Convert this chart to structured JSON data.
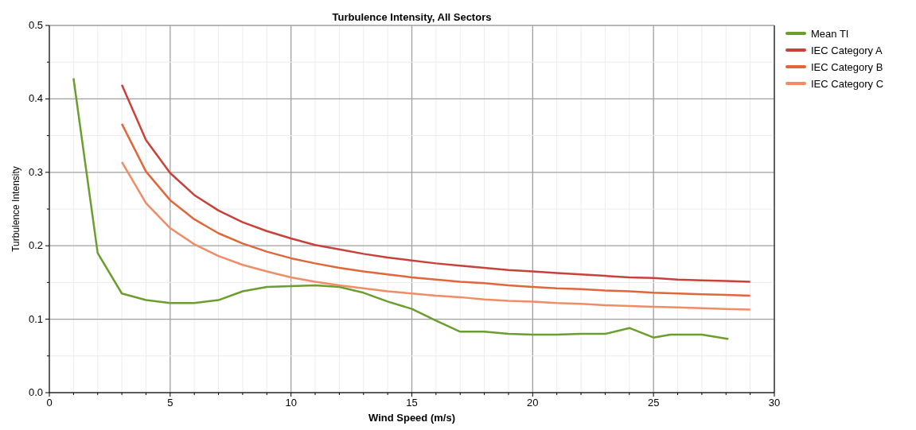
{
  "chart_data": {
    "type": "line",
    "title": "Turbulence Intensity, All Sectors",
    "xlabel": "Wind Speed (m/s)",
    "ylabel": "Turbulence Intensity",
    "xlim": [
      0,
      30
    ],
    "ylim": [
      0,
      0.5
    ],
    "xticks": [
      0,
      {
        "value": 1,
        "label": null
      },
      {
        "value": 2,
        "label": null
      },
      {
        "value": 3,
        "label": null
      },
      {
        "value": 4,
        "label": null
      },
      5,
      {
        "value": 6,
        "label": null
      },
      {
        "value": 7,
        "label": null
      },
      {
        "value": 8,
        "label": null
      },
      {
        "value": 9,
        "label": null
      },
      10,
      {
        "value": 11,
        "label": null
      },
      {
        "value": 12,
        "label": null
      },
      {
        "value": 13,
        "label": null
      },
      {
        "value": 14,
        "label": null
      },
      15,
      {
        "value": 16,
        "label": null
      },
      {
        "value": 17,
        "label": null
      },
      {
        "value": 18,
        "label": null
      },
      {
        "value": 19,
        "label": null
      },
      20,
      {
        "value": 21,
        "label": null
      },
      {
        "value": 22,
        "label": null
      },
      {
        "value": 23,
        "label": null
      },
      {
        "value": 24,
        "label": null
      },
      25,
      {
        "value": 26,
        "label": null
      },
      {
        "value": 27,
        "label": null
      },
      {
        "value": 28,
        "label": null
      },
      {
        "value": 29,
        "label": null
      },
      30
    ],
    "yticks": [
      {
        "value": 0,
        "label": "0.0"
      },
      {
        "value": 0.05,
        "label": null
      },
      0.1,
      {
        "value": 0.15,
        "label": null
      },
      0.2,
      {
        "value": 0.25,
        "label": null
      },
      0.3,
      {
        "value": 0.35,
        "label": null
      },
      0.4,
      {
        "value": 0.45,
        "label": null
      },
      0.5
    ],
    "grid": true,
    "legend": "top right",
    "marker": "none",
    "line_style": "solid",
    "series": [
      {
        "name": "Mean TI",
        "color": "#6b9e2e",
        "x": [
          1,
          2,
          3,
          4,
          5,
          6,
          7,
          8,
          9,
          10,
          11,
          12,
          13,
          14,
          15,
          16,
          17,
          18,
          19,
          20,
          21,
          22,
          23,
          24,
          25,
          25.7,
          26,
          27,
          28.1
        ],
        "values": [
          0.428,
          0.19,
          0.135,
          0.126,
          0.122,
          0.122,
          0.126,
          0.138,
          0.144,
          0.145,
          0.146,
          0.144,
          0.136,
          0.124,
          0.114,
          0.098,
          0.083,
          0.083,
          0.08,
          0.079,
          0.079,
          0.08,
          0.08,
          0.088,
          0.075,
          0.079,
          0.079,
          0.079,
          0.073
        ]
      },
      {
        "name": "IEC Category A",
        "color": "#c9413b",
        "x": [
          3,
          4,
          5,
          6,
          7,
          8,
          9,
          10,
          11,
          12,
          13,
          14,
          15,
          16,
          17,
          18,
          19,
          20,
          21,
          22,
          23,
          24,
          25,
          26,
          27,
          28,
          29
        ],
        "values": [
          0.419,
          0.344,
          0.299,
          0.269,
          0.248,
          0.232,
          0.22,
          0.21,
          0.201,
          0.195,
          0.189,
          0.184,
          0.18,
          0.176,
          0.173,
          0.17,
          0.167,
          0.165,
          0.163,
          0.161,
          0.159,
          0.157,
          0.156,
          0.154,
          0.153,
          0.152,
          0.151
        ]
      },
      {
        "name": "IEC Category B",
        "color": "#e0673a",
        "x": [
          3,
          4,
          5,
          6,
          7,
          8,
          9,
          10,
          11,
          12,
          13,
          14,
          15,
          16,
          17,
          18,
          19,
          20,
          21,
          22,
          23,
          24,
          25,
          26,
          27,
          28,
          29
        ],
        "values": [
          0.366,
          0.301,
          0.262,
          0.236,
          0.217,
          0.203,
          0.192,
          0.183,
          0.176,
          0.17,
          0.165,
          0.161,
          0.157,
          0.154,
          0.151,
          0.149,
          0.146,
          0.144,
          0.142,
          0.141,
          0.139,
          0.138,
          0.136,
          0.135,
          0.134,
          0.133,
          0.132
        ]
      },
      {
        "name": "IEC Category C",
        "color": "#f08c66",
        "x": [
          3,
          4,
          5,
          6,
          7,
          8,
          9,
          10,
          11,
          12,
          13,
          14,
          15,
          16,
          17,
          18,
          19,
          20,
          21,
          22,
          23,
          24,
          25,
          26,
          27,
          28,
          29
        ],
        "values": [
          0.314,
          0.258,
          0.224,
          0.202,
          0.186,
          0.174,
          0.165,
          0.157,
          0.151,
          0.146,
          0.142,
          0.138,
          0.135,
          0.132,
          0.13,
          0.127,
          0.125,
          0.124,
          0.122,
          0.121,
          0.119,
          0.118,
          0.117,
          0.116,
          0.115,
          0.114,
          0.113
        ]
      }
    ]
  }
}
